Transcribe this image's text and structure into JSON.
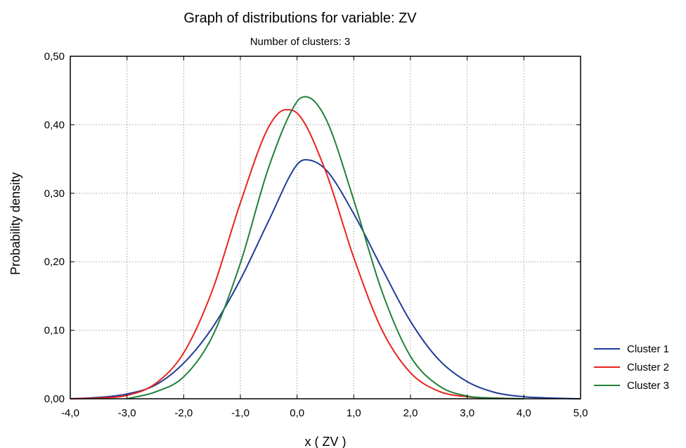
{
  "chart_data": {
    "type": "line",
    "title": "Graph of distributions for variable: ZV",
    "subtitle": "Number of clusters: 3",
    "xlabel": "x ( ZV        )",
    "ylabel": "Probability density",
    "xlim": [
      -4.0,
      5.0
    ],
    "ylim": [
      0.0,
      0.5
    ],
    "x_ticks": [
      -4,
      -3,
      -2,
      -1,
      0,
      1,
      2,
      3,
      4,
      5
    ],
    "x_tick_labels": [
      "-4,0",
      "-3,0",
      "-2,0",
      "-1,0",
      "0,0",
      "1,0",
      "2,0",
      "3,0",
      "4,0",
      "5,0"
    ],
    "y_ticks": [
      0,
      0.1,
      0.2,
      0.3,
      0.4,
      0.5
    ],
    "y_tick_labels": [
      "0,00",
      "0,10",
      "0,20",
      "0,30",
      "0,40",
      "0,50"
    ],
    "grid": true,
    "legend_position": "right",
    "series": [
      {
        "name": "Cluster 1",
        "color": "#1f3c96",
        "x": [
          -4.0,
          -3.5,
          -3.0,
          -2.5,
          -2.0,
          -1.5,
          -1.0,
          -0.5,
          0.0,
          0.15,
          0.5,
          1.0,
          1.5,
          2.0,
          2.5,
          3.0,
          3.5,
          4.0,
          4.5,
          5.0
        ],
        "y": [
          0.0,
          0.002,
          0.007,
          0.02,
          0.052,
          0.103,
          0.174,
          0.26,
          0.342,
          0.349,
          0.335,
          0.27,
          0.19,
          0.113,
          0.057,
          0.025,
          0.009,
          0.003,
          0.001,
          0.0
        ]
      },
      {
        "name": "Cluster 2",
        "color": "#e8231f",
        "x": [
          -4.0,
          -3.5,
          -3.0,
          -2.5,
          -2.0,
          -1.5,
          -1.0,
          -0.5,
          -0.2,
          0.0,
          0.5,
          1.0,
          1.5,
          2.0,
          2.5,
          3.0,
          3.5,
          4.0
        ],
        "y": [
          0.0,
          0.001,
          0.005,
          0.022,
          0.067,
          0.157,
          0.286,
          0.397,
          0.422,
          0.417,
          0.333,
          0.206,
          0.1,
          0.038,
          0.011,
          0.003,
          0.001,
          0.0
        ]
      },
      {
        "name": "Cluster 3",
        "color": "#208039",
        "x": [
          -3.0,
          -2.5,
          -2.0,
          -1.5,
          -1.0,
          -0.5,
          0.0,
          0.15,
          0.5,
          1.0,
          1.5,
          2.0,
          2.5,
          3.0,
          3.5,
          4.0
        ],
        "y": [
          0.0,
          0.01,
          0.032,
          0.09,
          0.198,
          0.338,
          0.434,
          0.441,
          0.41,
          0.29,
          0.156,
          0.062,
          0.019,
          0.004,
          0.001,
          0.0
        ]
      }
    ]
  }
}
